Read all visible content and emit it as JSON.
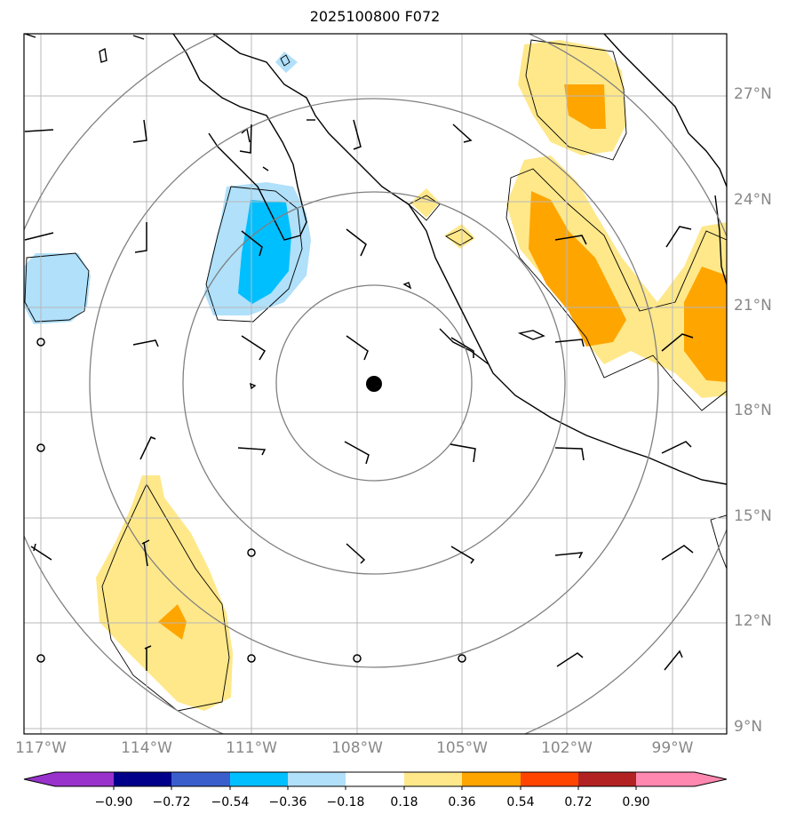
{
  "title": "2025100800 F072",
  "lat_labels": [
    "27°N",
    "24°N",
    "21°N",
    "18°N",
    "15°N",
    "12°N",
    "9°N"
  ],
  "lon_labels": [
    "117°W",
    "114°W",
    "111°W",
    "108°W",
    "105°W",
    "102°W",
    "99°W"
  ],
  "colorbar": {
    "labels": [
      "−0.90",
      "−0.72",
      "−0.54",
      "−0.36",
      "−0.18",
      "0.18",
      "0.36",
      "0.54",
      "0.72",
      "0.90"
    ],
    "colors": [
      "#9932cc",
      "#00008b",
      "#3a5fcd",
      "#00bfff",
      "#b0e0fa",
      "#ffffff",
      "#ffe88a",
      "#ffa500",
      "#ff4500",
      "#b22222",
      "#ff88b0"
    ]
  },
  "map_data": {
    "extent": {
      "lon": [
        -117.5,
        -97.5
      ],
      "lat": [
        8.8,
        28.8
      ]
    },
    "center_marker": {
      "lon": -107.5,
      "lat": 18.8
    },
    "range_rings": 4
  }
}
